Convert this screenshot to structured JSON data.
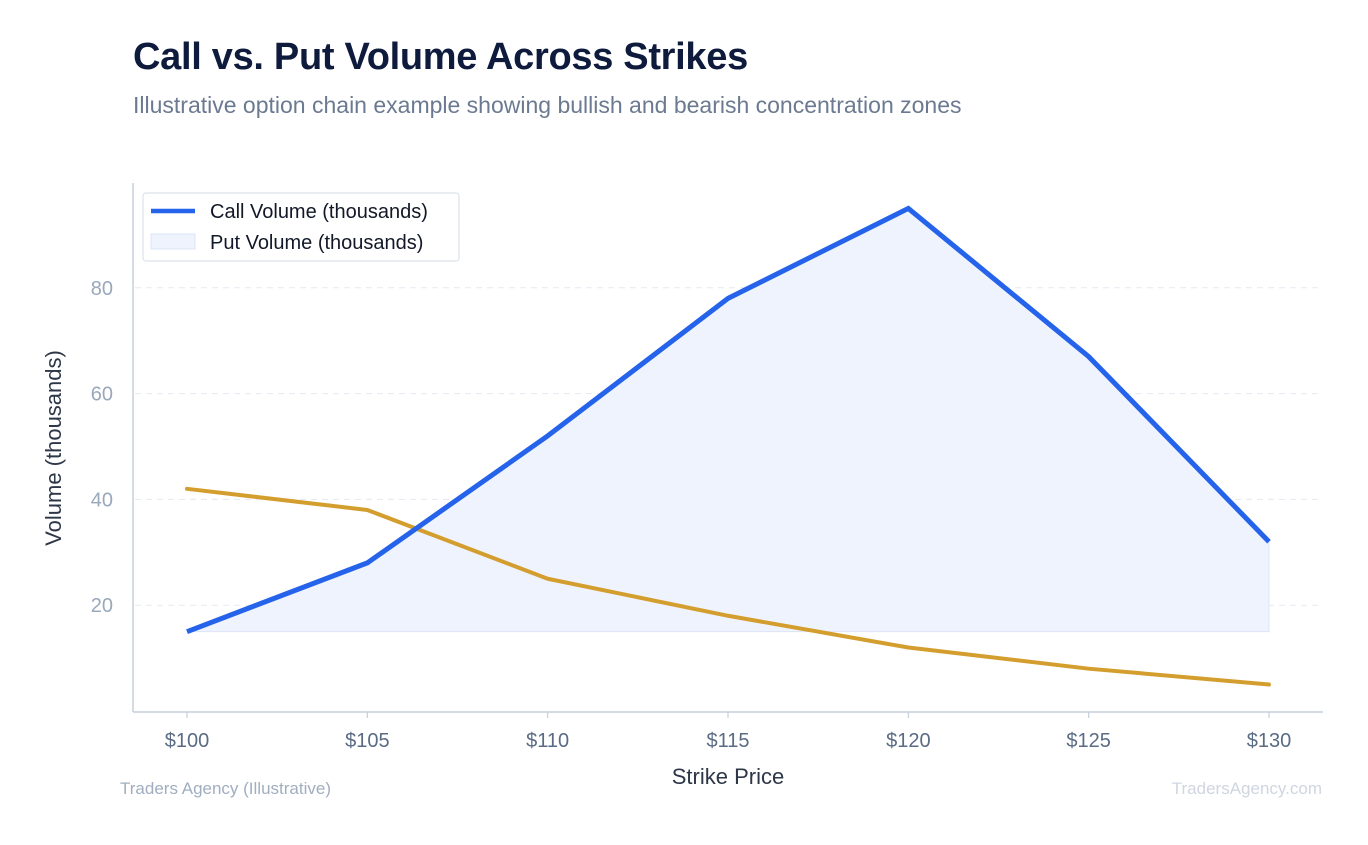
{
  "colors": {
    "call": "#2563eb",
    "put": "#d49e2e",
    "fill": "#eef3fd",
    "grid": "#e5e9f0",
    "axis": "#c5cfdb",
    "ytick": "#9aa8bb",
    "xtick": "#5a6b84"
  },
  "chart_data": {
    "type": "line",
    "title": "Call vs. Put Volume Across Strikes",
    "subtitle": "Illustrative option chain example showing bullish and bearish concentration zones",
    "xlabel": "Strike Price",
    "ylabel": "Volume (thousands)",
    "categories": [
      "$100",
      "$105",
      "$110",
      "$115",
      "$120",
      "$125",
      "$130"
    ],
    "y_ticks": [
      20,
      40,
      60,
      80
    ],
    "ylim": [
      0,
      100
    ],
    "grid": "horizontal dashed",
    "legend_position": "top-left",
    "series": [
      {
        "name": "Call Volume (thousands)",
        "values": [
          15,
          28,
          52,
          78,
          95,
          67,
          32
        ]
      },
      {
        "name": "Put Volume (thousands)",
        "values": [
          42,
          38,
          25,
          18,
          12,
          8,
          5
        ]
      }
    ]
  },
  "footer": {
    "source": "Traders Agency (Illustrative)",
    "watermark": "TradersAgency.com"
  }
}
